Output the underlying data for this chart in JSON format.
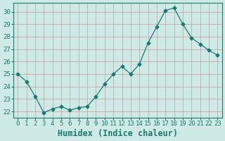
{
  "x": [
    0,
    1,
    2,
    3,
    4,
    5,
    6,
    7,
    8,
    9,
    10,
    11,
    12,
    13,
    14,
    15,
    16,
    17,
    18,
    19,
    20,
    21,
    22,
    23
  ],
  "y": [
    25.0,
    24.4,
    23.2,
    21.9,
    22.2,
    22.4,
    22.1,
    22.3,
    22.4,
    23.2,
    24.2,
    25.0,
    25.6,
    25.0,
    25.8,
    27.5,
    28.8,
    30.1,
    30.3,
    29.0,
    27.9,
    27.4,
    26.9,
    26.5
  ],
  "line_color": "#1a7a6e",
  "marker": "D",
  "marker_size": 2.5,
  "bg_color": "#ceeae6",
  "grid_color": "#c8a8a8",
  "xlabel": "Humidex (Indice chaleur)",
  "ylim": [
    21.5,
    30.7
  ],
  "yticks": [
    22,
    23,
    24,
    25,
    26,
    27,
    28,
    29,
    30
  ],
  "xlim": [
    -0.5,
    23.5
  ],
  "xticks": [
    0,
    1,
    2,
    3,
    4,
    5,
    6,
    7,
    8,
    9,
    10,
    11,
    12,
    13,
    14,
    15,
    16,
    17,
    18,
    19,
    20,
    21,
    22,
    23
  ],
  "tick_fontsize": 6.5,
  "xlabel_fontsize": 8.5
}
